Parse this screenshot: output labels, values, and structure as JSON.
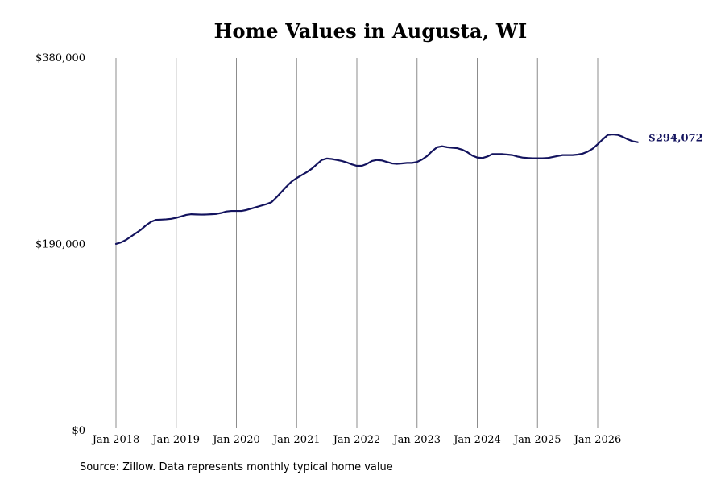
{
  "chart_data": {
    "type": "line",
    "title": "Home Values in Augusta, WI",
    "xlabel": "",
    "ylabel": "",
    "ylim": [
      0,
      380000
    ],
    "y_ticks": [
      {
        "value": 0,
        "label": "$0"
      },
      {
        "value": 190000,
        "label": "$190,000"
      },
      {
        "value": 380000,
        "label": "$380,000"
      }
    ],
    "x_ticks": [
      {
        "value": "2018-01",
        "label": "Jan 2018"
      },
      {
        "value": "2019-01",
        "label": "Jan 2019"
      },
      {
        "value": "2020-01",
        "label": "Jan 2020"
      },
      {
        "value": "2021-01",
        "label": "Jan 2021"
      },
      {
        "value": "2022-01",
        "label": "Jan 2022"
      },
      {
        "value": "2023-01",
        "label": "Jan 2023"
      },
      {
        "value": "2024-01",
        "label": "Jan 2024"
      },
      {
        "value": "2025-01",
        "label": "Jan 2025"
      },
      {
        "value": "2026-01",
        "label": "Jan 2026"
      }
    ],
    "grid": "vertical",
    "line_color": "#13135e",
    "end_label": "$294,072",
    "series": [
      {
        "x": [
          "2018-01",
          "2018-02",
          "2018-03",
          "2018-04",
          "2018-05",
          "2018-06",
          "2018-07",
          "2018-08",
          "2018-09",
          "2018-10",
          "2018-11",
          "2018-12",
          "2019-01",
          "2019-02",
          "2019-03",
          "2019-04",
          "2019-05",
          "2019-06",
          "2019-07",
          "2019-08",
          "2019-09",
          "2019-10",
          "2019-11",
          "2019-12",
          "2020-01",
          "2020-02",
          "2020-03",
          "2020-04",
          "2020-05",
          "2020-06",
          "2020-07",
          "2020-08",
          "2020-09",
          "2020-10",
          "2020-11",
          "2020-12",
          "2021-01",
          "2021-02",
          "2021-03",
          "2021-04",
          "2021-05",
          "2021-06",
          "2021-07",
          "2021-08",
          "2021-09",
          "2021-10",
          "2021-11",
          "2021-12",
          "2022-01",
          "2022-02",
          "2022-03",
          "2022-04",
          "2022-05",
          "2022-06",
          "2022-07",
          "2022-08",
          "2022-09",
          "2022-10",
          "2022-11",
          "2022-12",
          "2023-01",
          "2023-02",
          "2023-03",
          "2023-04",
          "2023-05",
          "2023-06",
          "2023-07",
          "2023-08",
          "2023-09",
          "2023-10",
          "2023-11",
          "2023-12",
          "2024-01",
          "2024-02",
          "2024-03",
          "2024-04",
          "2024-05",
          "2024-06",
          "2024-07",
          "2024-08",
          "2024-09",
          "2024-10",
          "2024-11",
          "2024-12",
          "2025-01",
          "2025-02",
          "2025-03",
          "2025-04",
          "2025-05",
          "2025-06",
          "2025-07",
          "2025-08",
          "2025-09",
          "2025-10",
          "2025-11",
          "2025-12",
          "2026-01",
          "2026-02",
          "2026-03",
          "2026-04",
          "2026-05",
          "2026-06",
          "2026-07",
          "2026-08",
          "2026-09"
        ],
        "values": [
          190500,
          192000,
          194500,
          198000,
          201500,
          205000,
          209500,
          213000,
          215000,
          215200,
          215500,
          216000,
          217000,
          218500,
          220000,
          220700,
          220500,
          220300,
          220400,
          220700,
          221000,
          222000,
          223500,
          224000,
          224000,
          224000,
          225000,
          226500,
          228000,
          229500,
          231000,
          233000,
          238000,
          243500,
          249000,
          254000,
          257500,
          260500,
          263500,
          267000,
          271500,
          276000,
          277500,
          277000,
          276000,
          275000,
          273500,
          271500,
          270000,
          270000,
          272000,
          275000,
          276000,
          275500,
          274000,
          272500,
          272000,
          272500,
          273000,
          273000,
          274000,
          276500,
          280000,
          285000,
          289000,
          290000,
          289000,
          288500,
          288000,
          286500,
          284000,
          280500,
          278500,
          278000,
          279500,
          282000,
          282000,
          282000,
          281500,
          281000,
          279500,
          278500,
          278000,
          277700,
          277700,
          277700,
          278000,
          279000,
          280000,
          281000,
          281000,
          281000,
          281500,
          282500,
          284500,
          287500,
          292000,
          297000,
          301500,
          302000,
          301500,
          299500,
          297000,
          295000,
          294072
        ]
      }
    ]
  },
  "source_note": "Source: Zillow. Data represents monthly typical home value"
}
